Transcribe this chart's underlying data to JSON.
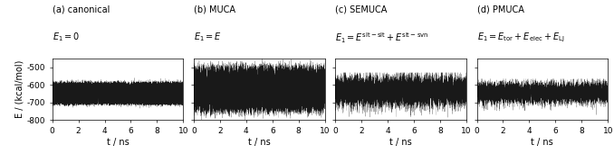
{
  "panels": [
    {
      "label": "(a) canonical",
      "eq_line1": "$E_1 = 0$",
      "noise_mean": -650,
      "noise_std": 27,
      "clip_lo": -760,
      "clip_hi": -560,
      "type": "canonical"
    },
    {
      "label": "(b) MUCA",
      "eq_line1": "$E_1 = E$",
      "noise_mean": -610,
      "noise_std": 75,
      "clip_lo": -800,
      "clip_hi": -450,
      "type": "muca"
    },
    {
      "label": "(c) SEMUCA",
      "eq_line1": "$E_1 = E^{\\mathrm{slt-slt}}+E^{\\mathrm{slt-svn}}$",
      "noise_mean": -635,
      "noise_std": 45,
      "clip_lo": -790,
      "clip_hi": -530,
      "type": "semuca"
    },
    {
      "label": "(d) PMUCA",
      "eq_line1": "$E_1 = E_{\\mathrm{tor}}+E_{\\mathrm{elec}}+E_{\\mathrm{LJ}}$",
      "noise_mean": -645,
      "noise_std": 30,
      "clip_lo": -770,
      "clip_hi": -565,
      "type": "pmuca"
    }
  ],
  "xlim": [
    0,
    10
  ],
  "xticks": [
    0,
    2,
    4,
    6,
    8,
    10
  ],
  "ylim": [
    -800,
    -450
  ],
  "yticks": [
    -800,
    -700,
    -600,
    -500
  ],
  "xlabel": "t / ns",
  "ylabel": "E / (kcal/mol)",
  "line_color": "#000000",
  "bg_color": "#ffffff",
  "fontsize_label": 7.0,
  "fontsize_tick": 6.5,
  "n_points": 8000
}
